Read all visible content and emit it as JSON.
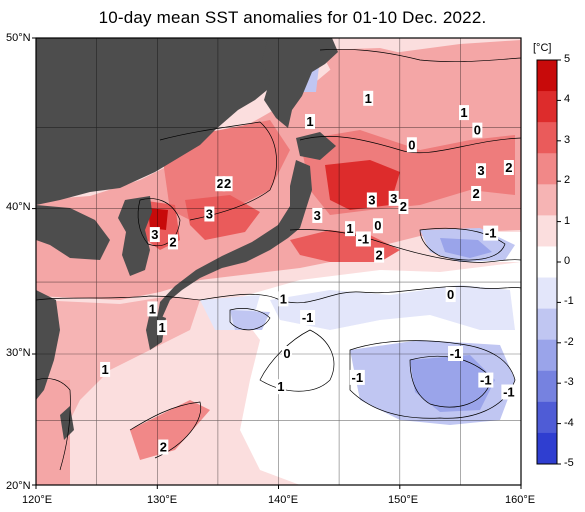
{
  "title": "10-day mean SST anomalies for 01-10 Dec. 2022.",
  "lat_labels": [
    "50°N",
    "40°N",
    "30°N",
    "20°N"
  ],
  "lon_labels": [
    "120°E",
    "130°E",
    "140°E",
    "150°E",
    "160°E"
  ],
  "colorbar": {
    "unit": "[°C]",
    "ticks": [
      "5",
      "4",
      "3",
      "2",
      "1",
      "0",
      "-1",
      "-2",
      "-3",
      "-4",
      "-5"
    ],
    "colors": [
      "#c80a0a",
      "#dd2c2c",
      "#ea5b5b",
      "#f18888",
      "#f6b4b4",
      "#fbdede",
      "#ffffff",
      "#e3e6fa",
      "#c0c6f2",
      "#9aa4ea",
      "#7682e0",
      "#4f5cd6",
      "#2f3ed0"
    ]
  },
  "land_color": "#4d4d4d",
  "contour_labels": [
    {
      "text": "1",
      "lon": 147.4,
      "lat": 46.6
    },
    {
      "text": "1",
      "lon": 142.6,
      "lat": 45.3
    },
    {
      "text": "1",
      "lon": 155.3,
      "lat": 45.8
    },
    {
      "text": "0",
      "lon": 156.4,
      "lat": 44.8
    },
    {
      "text": "0",
      "lon": 151.0,
      "lat": 43.9
    },
    {
      "text": "3",
      "lon": 156.7,
      "lat": 42.3
    },
    {
      "text": "2",
      "lon": 159.0,
      "lat": 42.5
    },
    {
      "text": "2",
      "lon": 135.2,
      "lat": 41.5
    },
    {
      "text": "2",
      "lon": 135.8,
      "lat": 41.5
    },
    {
      "text": "2",
      "lon": 156.3,
      "lat": 40.9
    },
    {
      "text": "3",
      "lon": 147.7,
      "lat": 40.5
    },
    {
      "text": "3",
      "lon": 149.5,
      "lat": 40.6
    },
    {
      "text": "2",
      "lon": 150.3,
      "lat": 40.1
    },
    {
      "text": "3",
      "lon": 134.3,
      "lat": 39.6
    },
    {
      "text": "3",
      "lon": 143.2,
      "lat": 39.5
    },
    {
      "text": "1",
      "lon": 145.9,
      "lat": 38.6
    },
    {
      "text": "0",
      "lon": 148.2,
      "lat": 38.8
    },
    {
      "text": "3",
      "lon": 129.8,
      "lat": 38.2
    },
    {
      "text": "2",
      "lon": 131.3,
      "lat": 37.7
    },
    {
      "text": "-1",
      "lon": 147.0,
      "lat": 37.9
    },
    {
      "text": "-1",
      "lon": 157.5,
      "lat": 38.3
    },
    {
      "text": "2",
      "lon": 148.3,
      "lat": 36.8
    },
    {
      "text": "0",
      "lon": 154.2,
      "lat": 34.1
    },
    {
      "text": "1",
      "lon": 129.6,
      "lat": 33.1
    },
    {
      "text": "1",
      "lon": 140.4,
      "lat": 33.8
    },
    {
      "text": "-1",
      "lon": 142.4,
      "lat": 32.5
    },
    {
      "text": "1",
      "lon": 130.4,
      "lat": 31.8
    },
    {
      "text": "0",
      "lon": 140.7,
      "lat": 30.0
    },
    {
      "text": "-1",
      "lon": 154.6,
      "lat": 30.0
    },
    {
      "text": "1",
      "lon": 125.7,
      "lat": 28.8
    },
    {
      "text": "-1",
      "lon": 146.5,
      "lat": 28.2
    },
    {
      "text": "-1",
      "lon": 157.1,
      "lat": 28.0
    },
    {
      "text": "1",
      "lon": 140.2,
      "lat": 27.5
    },
    {
      "text": "-1",
      "lon": 159.0,
      "lat": 27.1
    },
    {
      "text": "2",
      "lon": 130.5,
      "lat": 22.9
    }
  ]
}
